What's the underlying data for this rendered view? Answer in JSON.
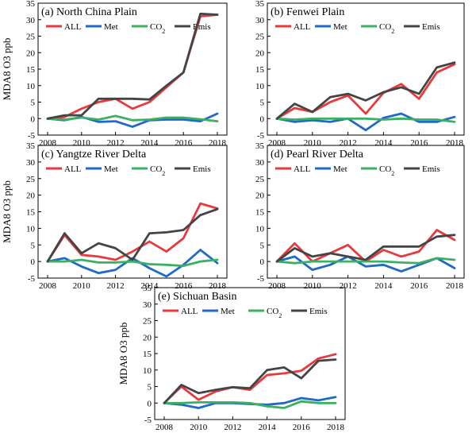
{
  "chart_data": [
    {
      "type": "line",
      "title": "(a) North China Plain",
      "ylabel": "MDA8 O3 ppb",
      "x": [
        2008,
        2009,
        2010,
        2011,
        2012,
        2013,
        2014,
        2015,
        2016,
        2017,
        2018
      ],
      "xticks": [
        2008,
        2010,
        2012,
        2014,
        2016,
        2018
      ],
      "ylim": [
        -5,
        35
      ],
      "yticks": [
        -5,
        0,
        5,
        10,
        15,
        20,
        25,
        30,
        35
      ],
      "series": [
        {
          "name": "ALL",
          "color": "#e8393d",
          "values": [
            0,
            0.5,
            3,
            5,
            6,
            3,
            5,
            9.5,
            14,
            31,
            31.5
          ]
        },
        {
          "name": "Met",
          "color": "#2069c9",
          "values": [
            0,
            -0.5,
            0.5,
            -1,
            -0.8,
            -2.5,
            -0.5,
            -0.3,
            -0.3,
            -0.8,
            1.5
          ]
        },
        {
          "name": "CO2",
          "color": "#3bb063",
          "values": [
            0,
            -0.3,
            0.3,
            -0.3,
            0.8,
            -0.5,
            -0.3,
            0.3,
            0.3,
            -0.2,
            -0.8
          ]
        },
        {
          "name": "Emis",
          "color": "#444444",
          "values": [
            0,
            1,
            1,
            6,
            6,
            6,
            5.8,
            10,
            14,
            31.8,
            31.5
          ]
        }
      ]
    },
    {
      "type": "line",
      "title": "(b) Fenwei Plain",
      "ylabel": "",
      "x": [
        2008,
        2009,
        2010,
        2011,
        2012,
        2013,
        2014,
        2015,
        2016,
        2017,
        2018
      ],
      "xticks": [
        2008,
        2010,
        2012,
        2014,
        2016,
        2018
      ],
      "ylim": [
        -5,
        35
      ],
      "yticks": [
        -5,
        0,
        5,
        10,
        15,
        20,
        25,
        30,
        35
      ],
      "series": [
        {
          "name": "ALL",
          "color": "#e8393d",
          "values": [
            0,
            3.2,
            2,
            5,
            7,
            1.5,
            7.8,
            10.5,
            6,
            14,
            16.5
          ]
        },
        {
          "name": "Met",
          "color": "#2069c9",
          "values": [
            0,
            -1,
            -0.5,
            -1,
            0,
            -3.5,
            0.2,
            1.5,
            -1,
            -1,
            0.5
          ]
        },
        {
          "name": "CO2",
          "color": "#3bb063",
          "values": [
            0,
            -0.3,
            0,
            0,
            0,
            0,
            -0.3,
            0,
            -0.3,
            -0.3,
            -1
          ]
        },
        {
          "name": "Emis",
          "color": "#444444",
          "values": [
            0,
            4.5,
            2,
            6.5,
            7.5,
            5.5,
            8,
            9.5,
            7.5,
            15.5,
            17
          ]
        }
      ]
    },
    {
      "type": "line",
      "title": "(c) Yangtze River Delta",
      "ylabel": "MDA8 O3 ppb",
      "x": [
        2008,
        2009,
        2010,
        2011,
        2012,
        2013,
        2014,
        2015,
        2016,
        2017,
        2018
      ],
      "xticks": [
        2008,
        2010,
        2012,
        2014,
        2016,
        2018
      ],
      "ylim": [
        -5,
        35
      ],
      "yticks": [
        -5,
        0,
        5,
        10,
        15,
        20,
        25,
        30,
        35
      ],
      "series": [
        {
          "name": "ALL",
          "color": "#e8393d",
          "values": [
            0,
            8,
            2,
            1.5,
            0.5,
            3,
            6,
            3,
            7,
            17.5,
            16
          ]
        },
        {
          "name": "Met",
          "color": "#2069c9",
          "values": [
            0,
            1,
            -1.5,
            -3.5,
            -2.5,
            1,
            -2,
            -4.5,
            -1,
            3.5,
            -0.5
          ]
        },
        {
          "name": "CO2",
          "color": "#3bb063",
          "values": [
            0,
            0,
            0.5,
            -0.3,
            -0.3,
            0,
            -0.8,
            -1,
            -1.3,
            0,
            0.5
          ]
        },
        {
          "name": "Emis",
          "color": "#444444",
          "values": [
            0,
            8.5,
            2.5,
            5.5,
            4,
            0.5,
            8.5,
            8.8,
            9.5,
            14,
            15.8
          ]
        }
      ]
    },
    {
      "type": "line",
      "title": "(d) Pearl River Delta",
      "ylabel": "",
      "x": [
        2008,
        2009,
        2010,
        2011,
        2012,
        2013,
        2014,
        2015,
        2016,
        2017,
        2018
      ],
      "xticks": [
        2008,
        2010,
        2012,
        2014,
        2016,
        2018
      ],
      "ylim": [
        -5,
        35
      ],
      "yticks": [
        -5,
        0,
        5,
        10,
        15,
        20,
        25,
        30,
        35
      ],
      "series": [
        {
          "name": "ALL",
          "color": "#e8393d",
          "values": [
            0,
            5.5,
            0,
            2.5,
            5,
            0,
            3.5,
            1.5,
            3,
            9.5,
            6.5
          ]
        },
        {
          "name": "Met",
          "color": "#2069c9",
          "values": [
            0,
            1.5,
            -2.5,
            -1,
            1.5,
            -1.5,
            -1,
            -3,
            -1,
            1,
            -2
          ]
        },
        {
          "name": "CO2",
          "color": "#3bb063",
          "values": [
            0,
            -0.5,
            0,
            0,
            0,
            0,
            0,
            -0.3,
            -0.5,
            1,
            0.5
          ]
        },
        {
          "name": "Emis",
          "color": "#444444",
          "values": [
            0,
            4,
            1.5,
            2.5,
            1.5,
            0.5,
            4.5,
            4.5,
            4.5,
            7.5,
            8
          ]
        }
      ]
    },
    {
      "type": "line",
      "title": "(e) Sichuan Basin",
      "ylabel": "MDA8 O3 ppb",
      "x": [
        2008,
        2009,
        2010,
        2011,
        2012,
        2013,
        2014,
        2015,
        2016,
        2017,
        2018
      ],
      "xticks": [
        2008,
        2010,
        2012,
        2014,
        2016,
        2018
      ],
      "ylim": [
        -5,
        35
      ],
      "yticks": [
        -5,
        0,
        5,
        10,
        15,
        20,
        25,
        30,
        35
      ],
      "series": [
        {
          "name": "ALL",
          "color": "#e8393d",
          "values": [
            0,
            5,
            1,
            3.5,
            4.8,
            4,
            8.5,
            9,
            9.8,
            13.5,
            14.8
          ]
        },
        {
          "name": "Met",
          "color": "#2069c9",
          "values": [
            0,
            -0.5,
            -1.5,
            0,
            0,
            -0.3,
            -0.5,
            0,
            1.5,
            0.8,
            1.8
          ]
        },
        {
          "name": "CO2",
          "color": "#3bb063",
          "values": [
            0,
            0,
            0.2,
            0.2,
            0.2,
            0,
            -1,
            -1.5,
            0.5,
            0,
            0
          ]
        },
        {
          "name": "Emis",
          "color": "#444444",
          "values": [
            0,
            5.5,
            3,
            4,
            4.8,
            4.5,
            10,
            10.8,
            7.5,
            12.8,
            13.2
          ]
        }
      ]
    }
  ]
}
